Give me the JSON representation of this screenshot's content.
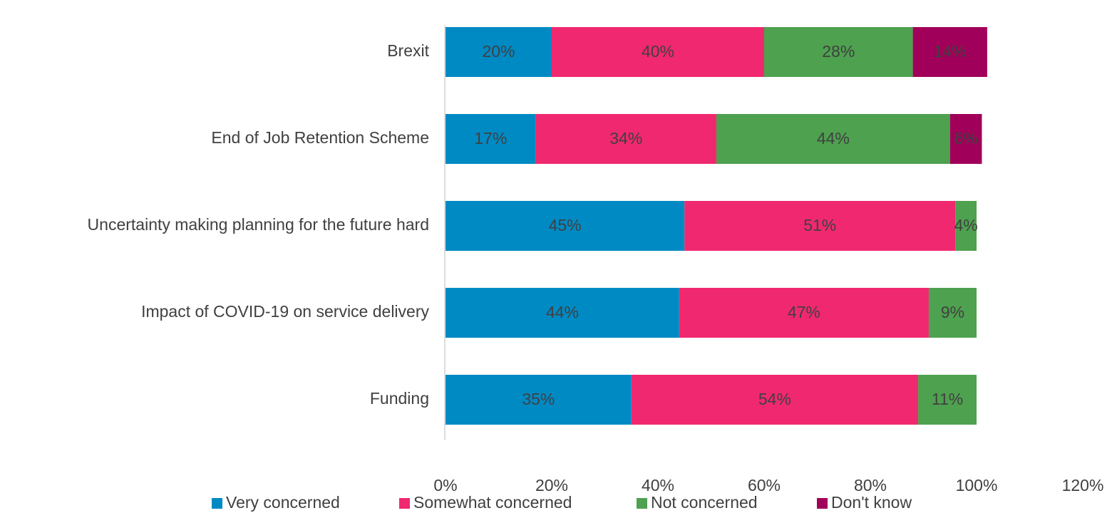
{
  "chart_data": {
    "type": "stacked-bar-horizontal",
    "categories": [
      "Brexit",
      "End of Job Retention Scheme",
      "Uncertainty making planning for the future hard",
      "Impact of COVID-19 on service delivery",
      "Funding"
    ],
    "series": [
      {
        "name": "Very concerned",
        "color": "#008ac4",
        "values": [
          20,
          17,
          45,
          44,
          35
        ],
        "value_labels": [
          "20%",
          "17%",
          "45%",
          "44%",
          "35%"
        ]
      },
      {
        "name": "Somewhat concerned",
        "color": "#f0286f",
        "values": [
          40,
          34,
          51,
          47,
          54
        ],
        "value_labels": [
          "40%",
          "34%",
          "51%",
          "47%",
          "54%"
        ]
      },
      {
        "name": "Not concerned",
        "color": "#4ea14f",
        "values": [
          28,
          44,
          4,
          9,
          11
        ],
        "value_labels": [
          "28%",
          "44%",
          "4%",
          "9%",
          "11%"
        ]
      },
      {
        "name": "Don't know",
        "color": "#a1005a",
        "values": [
          14,
          6,
          null,
          null,
          null
        ],
        "value_labels": [
          "14%",
          "6%",
          null,
          null,
          null
        ]
      }
    ],
    "xlim": [
      0,
      120
    ],
    "xticks": [
      {
        "value": 0,
        "label": "0%"
      },
      {
        "value": 20,
        "label": "20%"
      },
      {
        "value": 40,
        "label": "40%"
      },
      {
        "value": 60,
        "label": "60%"
      },
      {
        "value": 80,
        "label": "80%"
      },
      {
        "value": 100,
        "label": "100%"
      },
      {
        "value": 120,
        "label": "120%"
      }
    ],
    "legend": "bottom"
  }
}
